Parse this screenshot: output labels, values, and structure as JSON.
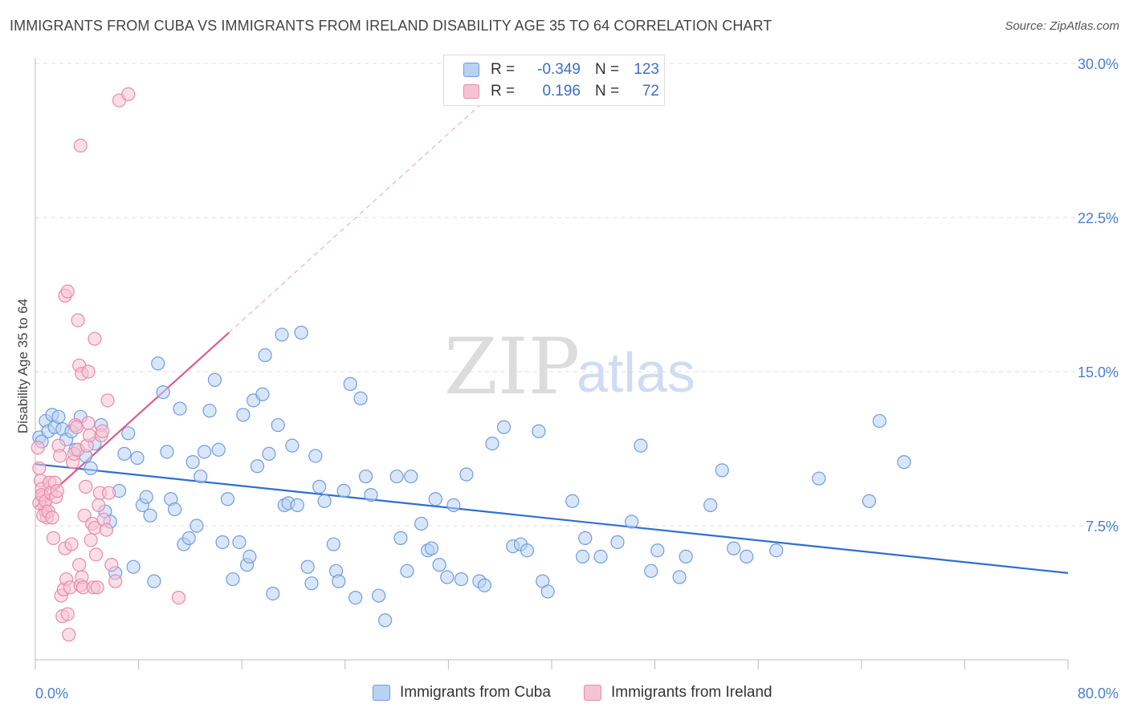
{
  "header": {
    "title": "IMMIGRANTS FROM CUBA VS IMMIGRANTS FROM IRELAND DISABILITY AGE 35 TO 64 CORRELATION CHART",
    "source": "Source: ZipAtlas.com"
  },
  "watermark": {
    "zip": "ZIP",
    "atlas": "atlas"
  },
  "legend": {
    "rows": [
      {
        "r_label": "R =",
        "r_value": "-0.349",
        "n_label": "N =",
        "n_value": "123"
      },
      {
        "r_label": "R =",
        "r_value": "0.196",
        "n_label": "N =",
        "n_value": "72"
      }
    ]
  },
  "colors": {
    "cuba_fill": "#b9d1f3",
    "cuba_stroke": "#6f9de0",
    "cuba_line": "#2f6fd0",
    "ireland_fill": "#f6c3d4",
    "ireland_stroke": "#e98aab",
    "ireland_line": "#e05a8a",
    "grid": "#dddddd",
    "tick_label": "#4a7fd0"
  },
  "chart_data": {
    "type": "scatter",
    "title": "IMMIGRANTS FROM CUBA VS IMMIGRANTS FROM IRELAND DISABILITY AGE 35 TO 64 CORRELATION CHART",
    "xlabel": "",
    "ylabel": "Disability Age 35 to 64",
    "xlim": [
      0,
      80
    ],
    "ylim": [
      0,
      31
    ],
    "x_tick_labels": [
      {
        "value": 0,
        "label": "0.0%"
      },
      {
        "value": 80,
        "label": "80.0%"
      }
    ],
    "y_tick_labels": [
      {
        "value": 7.5,
        "label": "7.5%"
      },
      {
        "value": 15.0,
        "label": "15.0%"
      },
      {
        "value": 22.5,
        "label": "22.5%"
      },
      {
        "value": 30.0,
        "label": "30.0%"
      }
    ],
    "grid": true,
    "legend_position": "bottom",
    "series": [
      {
        "name": "Immigrants from Cuba",
        "color": "#6f9de0",
        "points": [
          [
            0.3,
            11.8
          ],
          [
            0.5,
            11.6
          ],
          [
            0.8,
            12.6
          ],
          [
            1.0,
            12.1
          ],
          [
            1.3,
            12.9
          ],
          [
            1.5,
            12.3
          ],
          [
            1.8,
            12.8
          ],
          [
            2.1,
            12.2
          ],
          [
            2.4,
            11.7
          ],
          [
            2.8,
            12.1
          ],
          [
            3.1,
            11.2
          ],
          [
            3.5,
            12.8
          ],
          [
            3.9,
            10.9
          ],
          [
            4.3,
            10.3
          ],
          [
            4.6,
            11.5
          ],
          [
            5.1,
            12.4
          ],
          [
            5.4,
            8.2
          ],
          [
            5.8,
            7.7
          ],
          [
            6.2,
            5.2
          ],
          [
            6.5,
            9.2
          ],
          [
            6.9,
            11.0
          ],
          [
            7.2,
            12.0
          ],
          [
            7.6,
            5.5
          ],
          [
            7.9,
            10.8
          ],
          [
            8.3,
            8.5
          ],
          [
            8.6,
            8.9
          ],
          [
            8.9,
            8.0
          ],
          [
            9.2,
            4.8
          ],
          [
            9.5,
            15.4
          ],
          [
            9.9,
            14.0
          ],
          [
            10.2,
            11.1
          ],
          [
            10.5,
            8.8
          ],
          [
            10.8,
            8.3
          ],
          [
            11.2,
            13.2
          ],
          [
            11.5,
            6.6
          ],
          [
            11.9,
            6.9
          ],
          [
            12.2,
            10.6
          ],
          [
            12.5,
            7.5
          ],
          [
            12.8,
            9.9
          ],
          [
            13.1,
            11.1
          ],
          [
            13.5,
            13.1
          ],
          [
            13.9,
            14.6
          ],
          [
            14.2,
            11.2
          ],
          [
            14.5,
            6.7
          ],
          [
            14.9,
            8.8
          ],
          [
            15.3,
            4.9
          ],
          [
            15.8,
            6.7
          ],
          [
            16.1,
            12.9
          ],
          [
            16.4,
            5.6
          ],
          [
            16.6,
            6.0
          ],
          [
            16.9,
            13.6
          ],
          [
            17.2,
            10.4
          ],
          [
            17.6,
            13.9
          ],
          [
            17.8,
            15.8
          ],
          [
            18.1,
            11.0
          ],
          [
            18.4,
            4.2
          ],
          [
            18.8,
            12.4
          ],
          [
            19.1,
            16.8
          ],
          [
            19.3,
            8.5
          ],
          [
            19.6,
            8.6
          ],
          [
            19.9,
            11.4
          ],
          [
            20.3,
            8.5
          ],
          [
            20.6,
            16.9
          ],
          [
            21.1,
            5.5
          ],
          [
            21.4,
            4.7
          ],
          [
            21.7,
            10.9
          ],
          [
            22.0,
            9.4
          ],
          [
            22.4,
            8.7
          ],
          [
            23.1,
            6.6
          ],
          [
            23.3,
            5.3
          ],
          [
            23.5,
            4.8
          ],
          [
            23.9,
            9.2
          ],
          [
            24.4,
            14.4
          ],
          [
            24.8,
            4.0
          ],
          [
            25.2,
            13.7
          ],
          [
            25.6,
            9.9
          ],
          [
            26.0,
            9.0
          ],
          [
            26.6,
            4.1
          ],
          [
            27.1,
            2.9
          ],
          [
            28.0,
            9.9
          ],
          [
            28.3,
            6.9
          ],
          [
            28.8,
            5.3
          ],
          [
            29.1,
            9.9
          ],
          [
            29.9,
            7.6
          ],
          [
            30.4,
            6.3
          ],
          [
            30.7,
            6.4
          ],
          [
            31.0,
            8.8
          ],
          [
            31.3,
            5.6
          ],
          [
            31.9,
            5.0
          ],
          [
            32.4,
            8.5
          ],
          [
            33.0,
            4.9
          ],
          [
            33.4,
            10.0
          ],
          [
            34.4,
            4.8
          ],
          [
            34.8,
            4.6
          ],
          [
            35.4,
            11.5
          ],
          [
            36.3,
            12.3
          ],
          [
            37.0,
            6.5
          ],
          [
            37.6,
            6.6
          ],
          [
            38.1,
            6.3
          ],
          [
            39.0,
            12.1
          ],
          [
            39.3,
            4.8
          ],
          [
            39.7,
            4.3
          ],
          [
            41.6,
            8.7
          ],
          [
            42.4,
            6.0
          ],
          [
            42.6,
            6.9
          ],
          [
            43.8,
            6.0
          ],
          [
            45.1,
            6.7
          ],
          [
            46.2,
            7.7
          ],
          [
            46.9,
            11.4
          ],
          [
            47.7,
            5.3
          ],
          [
            48.2,
            6.3
          ],
          [
            49.9,
            5.0
          ],
          [
            50.4,
            6.0
          ],
          [
            52.3,
            8.5
          ],
          [
            53.2,
            10.2
          ],
          [
            54.1,
            6.4
          ],
          [
            55.1,
            6.0
          ],
          [
            57.4,
            6.3
          ],
          [
            60.7,
            9.8
          ],
          [
            64.6,
            8.7
          ],
          [
            65.4,
            12.6
          ],
          [
            67.3,
            10.6
          ]
        ],
        "trend": {
          "x": [
            0,
            80
          ],
          "y": [
            10.5,
            5.2
          ]
        }
      },
      {
        "name": "Immigrants from Ireland",
        "color": "#e98aab",
        "points": [
          [
            0.2,
            11.3
          ],
          [
            0.3,
            10.3
          ],
          [
            0.4,
            9.7
          ],
          [
            0.5,
            9.3
          ],
          [
            0.6,
            8.9
          ],
          [
            0.7,
            8.5
          ],
          [
            0.8,
            8.2
          ],
          [
            0.9,
            7.9
          ],
          [
            0.3,
            8.6
          ],
          [
            0.5,
            9.0
          ],
          [
            0.6,
            8.0
          ],
          [
            0.8,
            8.7
          ],
          [
            1.0,
            8.2
          ],
          [
            1.1,
            9.6
          ],
          [
            1.2,
            9.1
          ],
          [
            1.3,
            7.9
          ],
          [
            1.4,
            6.9
          ],
          [
            1.5,
            9.6
          ],
          [
            1.6,
            8.9
          ],
          [
            1.7,
            9.2
          ],
          [
            1.8,
            11.4
          ],
          [
            1.9,
            10.9
          ],
          [
            2.0,
            4.1
          ],
          [
            2.1,
            3.1
          ],
          [
            2.2,
            4.4
          ],
          [
            2.3,
            6.4
          ],
          [
            2.4,
            4.9
          ],
          [
            2.5,
            3.2
          ],
          [
            2.6,
            2.2
          ],
          [
            2.7,
            4.5
          ],
          [
            2.8,
            6.6
          ],
          [
            2.9,
            10.6
          ],
          [
            3.0,
            11.0
          ],
          [
            3.1,
            12.4
          ],
          [
            3.2,
            12.3
          ],
          [
            3.3,
            11.2
          ],
          [
            3.4,
            5.6
          ],
          [
            3.5,
            4.6
          ],
          [
            3.6,
            5.0
          ],
          [
            3.7,
            4.5
          ],
          [
            3.8,
            8.0
          ],
          [
            3.9,
            9.4
          ],
          [
            4.0,
            11.4
          ],
          [
            4.1,
            12.5
          ],
          [
            4.2,
            11.9
          ],
          [
            4.3,
            6.8
          ],
          [
            4.4,
            7.6
          ],
          [
            4.5,
            4.5
          ],
          [
            4.6,
            7.4
          ],
          [
            4.7,
            6.1
          ],
          [
            4.8,
            4.5
          ],
          [
            4.9,
            8.5
          ],
          [
            5.0,
            9.1
          ],
          [
            5.1,
            11.9
          ],
          [
            5.2,
            12.1
          ],
          [
            5.3,
            7.8
          ],
          [
            5.5,
            7.3
          ],
          [
            5.7,
            9.1
          ],
          [
            5.9,
            5.6
          ],
          [
            6.2,
            4.8
          ],
          [
            2.3,
            18.7
          ],
          [
            2.5,
            18.9
          ],
          [
            3.3,
            17.5
          ],
          [
            3.4,
            15.3
          ],
          [
            3.6,
            14.9
          ],
          [
            4.1,
            15.0
          ],
          [
            4.6,
            16.6
          ],
          [
            5.6,
            13.6
          ],
          [
            6.5,
            28.2
          ],
          [
            7.2,
            28.5
          ],
          [
            3.5,
            26.0
          ],
          [
            11.1,
            4.0
          ]
        ],
        "trend": {
          "x": [
            0,
            15.0
          ],
          "y": [
            8.4,
            16.9
          ]
        },
        "trend_extension": {
          "x": [
            15.0,
            38.0
          ],
          "y": [
            16.9,
            30.0
          ]
        }
      }
    ]
  },
  "bottom_legend": {
    "items": [
      {
        "label": "Immigrants from Cuba"
      },
      {
        "label": "Immigrants from Ireland"
      }
    ]
  }
}
